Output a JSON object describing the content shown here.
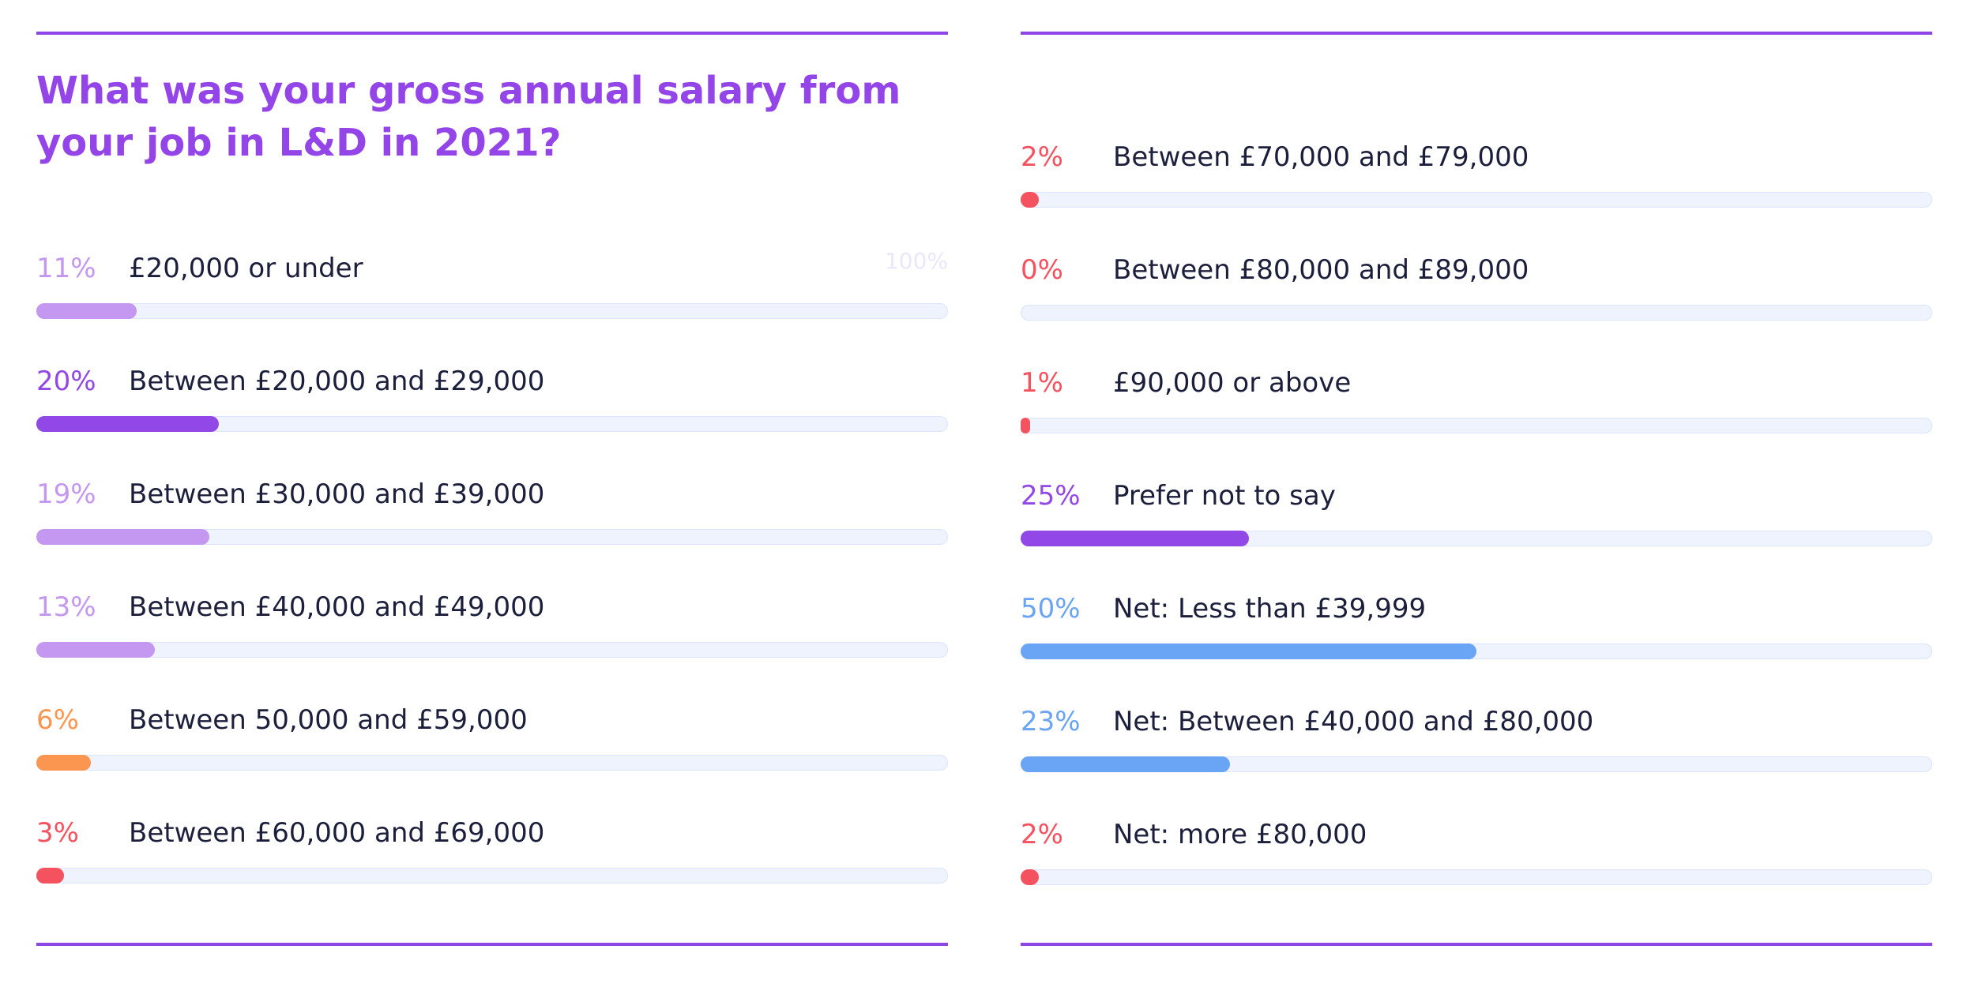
{
  "chart_data": {
    "type": "bar",
    "title": "What was your gross annual salary from your job in L&D in 2021?",
    "scale_max_label": "100%",
    "xlim": [
      0,
      100
    ],
    "left_series": [
      {
        "pct_label": "11%",
        "value": 11,
        "label": "£20,000 or under",
        "color": "#c497f1"
      },
      {
        "pct_label": "20%",
        "value": 20,
        "label": "Between £20,000 and £29,000",
        "color": "#9148e6"
      },
      {
        "pct_label": "19%",
        "value": 19,
        "label": "Between £30,000 and £39,000",
        "color": "#c497f1"
      },
      {
        "pct_label": "13%",
        "value": 13,
        "label": "Between £40,000 and £49,000",
        "color": "#c497f1"
      },
      {
        "pct_label": "6%",
        "value": 6,
        "label": "Between 50,000 and £59,000",
        "color": "#fb9651"
      },
      {
        "pct_label": "3%",
        "value": 3,
        "label": "Between £60,000 and £69,000",
        "color": "#f4525f"
      }
    ],
    "right_series": [
      {
        "pct_label": "2%",
        "value": 2,
        "label": "Between £70,000 and £79,000",
        "color": "#f4525f"
      },
      {
        "pct_label": "0%",
        "value": 0,
        "label": "Between £80,000 and £89,000",
        "color": "#f4525f"
      },
      {
        "pct_label": "1%",
        "value": 1,
        "label": "£90,000 or above",
        "color": "#f4525f"
      },
      {
        "pct_label": "25%",
        "value": 25,
        "label": "Prefer not to say",
        "color": "#9148e6"
      },
      {
        "pct_label": "50%",
        "value": 50,
        "label": "Net: Less than £39,999",
        "color": "#6aa4f4"
      },
      {
        "pct_label": "23%",
        "value": 23,
        "label": "Net: Between £40,000 and £80,000",
        "color": "#6aa4f4"
      },
      {
        "pct_label": "2%",
        "value": 2,
        "label": "Net: more £80,000",
        "color": "#f4525f"
      }
    ]
  },
  "colors": {
    "accent": "#8d45e6",
    "title": "#9445e8",
    "track": "#eef3fd",
    "label_text": "#1c1f3c"
  }
}
